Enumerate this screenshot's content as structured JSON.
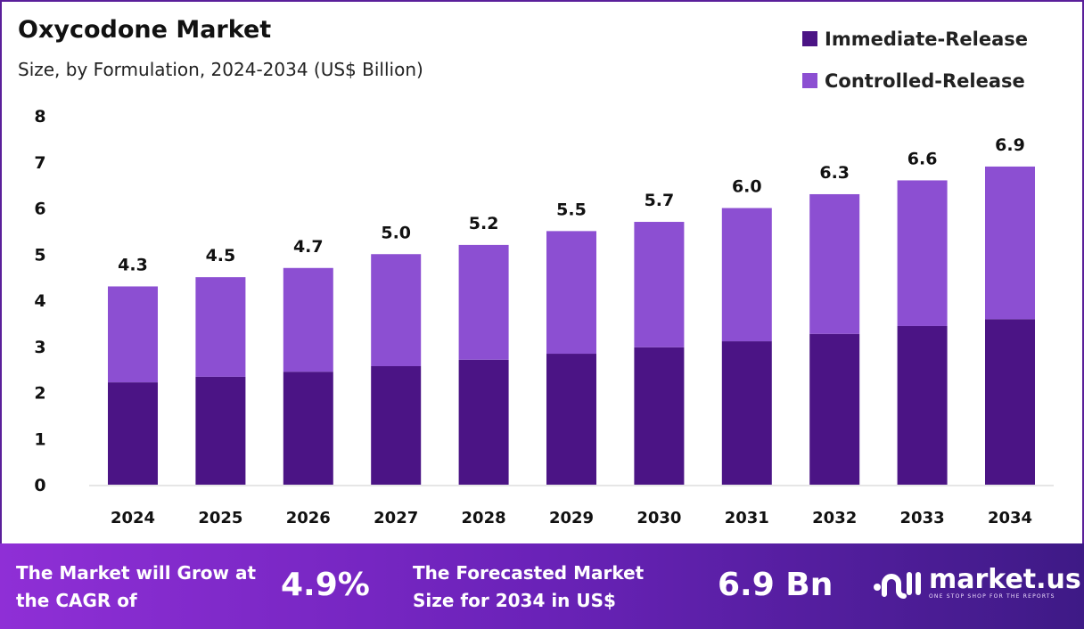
{
  "title": "Oxycodone Market",
  "subtitle": "Size, by Formulation, 2024-2034 (US$ Billion)",
  "colors": {
    "immediate": "#4b1485",
    "controlled": "#8c4fd2",
    "border": "#5a1f9a"
  },
  "chart_data": {
    "type": "bar",
    "stacked": true,
    "categories": [
      "2024",
      "2025",
      "2026",
      "2027",
      "2028",
      "2029",
      "2030",
      "2031",
      "2032",
      "2033",
      "2034"
    ],
    "series": [
      {
        "name": "Immediate-Release",
        "values": [
          2.22,
          2.34,
          2.45,
          2.57,
          2.71,
          2.84,
          2.98,
          3.11,
          3.27,
          3.44,
          3.59
        ]
      },
      {
        "name": "Controlled-Release",
        "values": [
          2.08,
          2.16,
          2.25,
          2.43,
          2.49,
          2.66,
          2.72,
          2.89,
          3.03,
          3.16,
          3.31
        ]
      }
    ],
    "totals": [
      "4.3",
      "4.5",
      "4.7",
      "5.0",
      "5.2",
      "5.5",
      "5.7",
      "6.0",
      "6.3",
      "6.6",
      "6.9"
    ],
    "ylim": [
      0,
      8
    ],
    "yticks": [
      "0",
      "1",
      "2",
      "3",
      "4",
      "5",
      "6",
      "7",
      "8"
    ],
    "grid": false,
    "legend": "top-right"
  },
  "footer": {
    "cagr_label": "The Market will Grow at the CAGR of",
    "cagr_value": "4.9%",
    "forecast_label": "The Forecasted Market Size for 2034 in US$",
    "forecast_value": "6.9 Bn",
    "logo_text": "market.us",
    "logo_tagline": "ONE STOP SHOP FOR THE REPORTS"
  }
}
